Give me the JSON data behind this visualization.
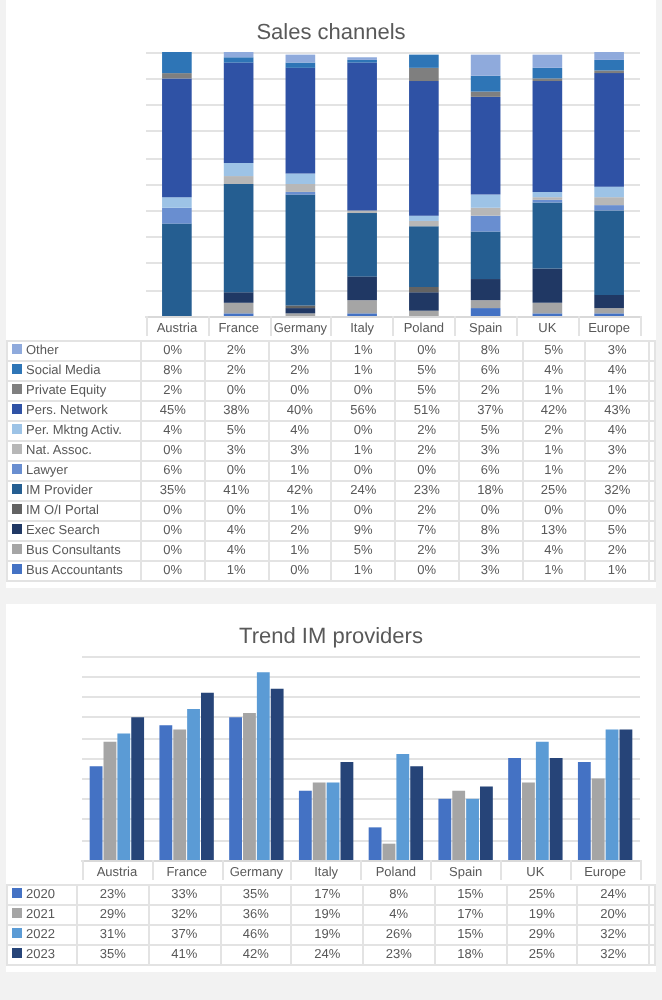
{
  "chart_data": [
    {
      "type": "bar",
      "title": "Sales channels",
      "stacked": true,
      "categories": [
        "Austria",
        "France",
        "Germany",
        "Italy",
        "Poland",
        "Spain",
        "UK",
        "Europe"
      ],
      "ylim": [
        0,
        100
      ],
      "yticks": [
        {
          "value": 0,
          "label": null
        },
        {
          "value": 10,
          "label": null
        },
        {
          "value": 20,
          "label": null
        },
        {
          "value": 30,
          "label": null
        },
        {
          "value": 40,
          "label": null
        },
        {
          "value": 50,
          "label": null
        },
        {
          "value": 60,
          "label": null
        },
        {
          "value": 70,
          "label": null
        },
        {
          "value": 80,
          "label": null
        },
        {
          "value": 90,
          "label": null
        },
        {
          "value": 100,
          "label": null
        }
      ],
      "grid": "y",
      "tick_labels": "x",
      "legend": "bottom",
      "series": [
        {
          "name": "Bus Accountants",
          "color": "#4472c4",
          "values": [
            0,
            1,
            0,
            1,
            0,
            3,
            1,
            1
          ],
          "value_labels": [
            "0%",
            "1%",
            "0%",
            "1%",
            "0%",
            "3%",
            "1%",
            "1%"
          ]
        },
        {
          "name": "Bus Consultants",
          "color": "#a5a5a5",
          "values": [
            0,
            4,
            1,
            5,
            2,
            3,
            4,
            2
          ],
          "value_labels": [
            "0%",
            "4%",
            "1%",
            "5%",
            "2%",
            "3%",
            "4%",
            "2%"
          ]
        },
        {
          "name": "Exec Search",
          "color": "#203864",
          "values": [
            0,
            4,
            2,
            9,
            7,
            8,
            13,
            5
          ],
          "value_labels": [
            "0%",
            "4%",
            "2%",
            "9%",
            "7%",
            "8%",
            "13%",
            "5%"
          ]
        },
        {
          "name": "IM O/I Portal",
          "color": "#636363",
          "values": [
            0,
            0,
            1,
            0,
            2,
            0,
            0,
            0
          ],
          "value_labels": [
            "0%",
            "0%",
            "1%",
            "0%",
            "2%",
            "0%",
            "0%",
            "0%"
          ]
        },
        {
          "name": "IM Provider",
          "color": "#255e91",
          "values": [
            35,
            41,
            42,
            24,
            23,
            18,
            25,
            32
          ],
          "value_labels": [
            "35%",
            "41%",
            "42%",
            "24%",
            "23%",
            "18%",
            "25%",
            "32%"
          ]
        },
        {
          "name": "Lawyer",
          "color": "#698ed0",
          "values": [
            6,
            0,
            1,
            0,
            0,
            6,
            1,
            2
          ],
          "value_labels": [
            "6%",
            "0%",
            "1%",
            "0%",
            "0%",
            "6%",
            "1%",
            "2%"
          ]
        },
        {
          "name": "Nat. Assoc.",
          "color": "#b7b7b7",
          "values": [
            0,
            3,
            3,
            1,
            2,
            3,
            1,
            3
          ],
          "value_labels": [
            "0%",
            "3%",
            "3%",
            "1%",
            "2%",
            "3%",
            "1%",
            "3%"
          ]
        },
        {
          "name": "Per. Mktng Activ.",
          "color": "#9dc3e6",
          "values": [
            4,
            5,
            4,
            0,
            2,
            5,
            2,
            4
          ],
          "value_labels": [
            "4%",
            "5%",
            "4%",
            "0%",
            "2%",
            "5%",
            "2%",
            "4%"
          ]
        },
        {
          "name": "Pers. Network",
          "color": "#2f52a5",
          "values": [
            45,
            38,
            40,
            56,
            51,
            37,
            42,
            43
          ],
          "value_labels": [
            "45%",
            "38%",
            "40%",
            "56%",
            "51%",
            "37%",
            "42%",
            "43%"
          ]
        },
        {
          "name": "Private Equity",
          "color": "#7f7f7f",
          "values": [
            2,
            0,
            0,
            0,
            5,
            2,
            1,
            1
          ],
          "value_labels": [
            "2%",
            "0%",
            "0%",
            "0%",
            "5%",
            "2%",
            "1%",
            "1%"
          ]
        },
        {
          "name": "Social Media",
          "color": "#2e75b6",
          "values": [
            8,
            2,
            2,
            1,
            5,
            6,
            4,
            4
          ],
          "value_labels": [
            "8%",
            "2%",
            "2%",
            "1%",
            "5%",
            "6%",
            "4%",
            "4%"
          ]
        },
        {
          "name": "Other",
          "color": "#8faadc",
          "values": [
            0,
            2,
            3,
            1,
            0,
            8,
            5,
            3
          ],
          "value_labels": [
            "0%",
            "2%",
            "3%",
            "1%",
            "0%",
            "8%",
            "5%",
            "3%"
          ]
        }
      ]
    },
    {
      "type": "bar",
      "title": "Trend IM providers",
      "categories": [
        "Austria",
        "France",
        "Germany",
        "Italy",
        "Poland",
        "Spain",
        "UK",
        "Europe"
      ],
      "ylim": [
        0,
        50
      ],
      "yticks": [
        {
          "value": 0,
          "label": null
        },
        {
          "value": 5,
          "label": null
        },
        {
          "value": 10,
          "label": null
        },
        {
          "value": 15,
          "label": null
        },
        {
          "value": 20,
          "label": null
        },
        {
          "value": 25,
          "label": null
        },
        {
          "value": 30,
          "label": null
        },
        {
          "value": 35,
          "label": null
        },
        {
          "value": 40,
          "label": null
        },
        {
          "value": 45,
          "label": null
        },
        {
          "value": 50,
          "label": null
        }
      ],
      "grid": "y",
      "tick_labels": "x",
      "legend": "bottom",
      "series": [
        {
          "name": "2020",
          "color": "#4472c4",
          "values": [
            23,
            33,
            35,
            17,
            8,
            15,
            25,
            24
          ],
          "value_labels": [
            "23%",
            "33%",
            "35%",
            "17%",
            "8%",
            "15%",
            "25%",
            "24%"
          ]
        },
        {
          "name": "2021",
          "color": "#a5a5a5",
          "values": [
            29,
            32,
            36,
            19,
            4,
            17,
            19,
            20
          ],
          "value_labels": [
            "29%",
            "32%",
            "36%",
            "19%",
            "4%",
            "17%",
            "19%",
            "20%"
          ]
        },
        {
          "name": "2022",
          "color": "#5b9bd5",
          "values": [
            31,
            37,
            46,
            19,
            26,
            15,
            29,
            32
          ],
          "value_labels": [
            "31%",
            "37%",
            "46%",
            "19%",
            "26%",
            "15%",
            "29%",
            "32%"
          ]
        },
        {
          "name": "2023",
          "color": "#264478",
          "values": [
            35,
            41,
            42,
            24,
            23,
            18,
            25,
            32
          ],
          "value_labels": [
            "35%",
            "41%",
            "42%",
            "24%",
            "23%",
            "18%",
            "25%",
            "32%"
          ]
        }
      ]
    }
  ]
}
